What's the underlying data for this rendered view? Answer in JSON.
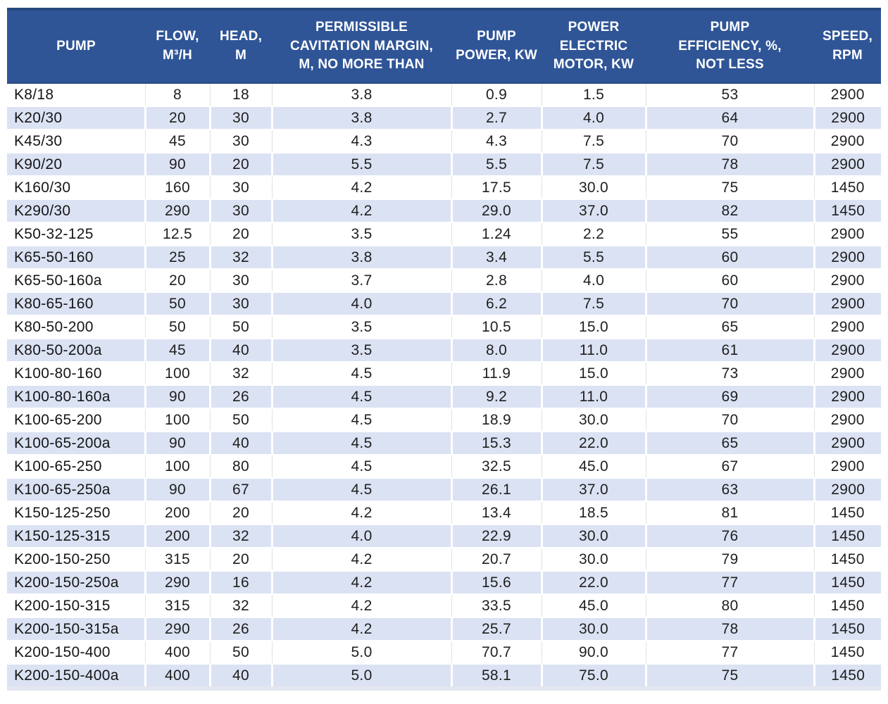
{
  "table": {
    "columns": [
      {
        "id": "pump",
        "label": "PUMP"
      },
      {
        "id": "flow",
        "label": "FLOW,\nM³/H"
      },
      {
        "id": "head",
        "label": "HEAD,\nM"
      },
      {
        "id": "cavitation",
        "label": "PERMISSIBLE\nCAVITATION MARGIN,\nM, NO MORE THAN"
      },
      {
        "id": "pump-power",
        "label": "PUMP\nPOWER, KW"
      },
      {
        "id": "motor-power",
        "label": "POWER\nELECTRIC\nMOTOR, KW"
      },
      {
        "id": "efficiency",
        "label": "PUMP\nEFFICIENCY, %,\nNOT LESS"
      },
      {
        "id": "speed",
        "label": "SPEED,\nRPM"
      }
    ],
    "rows": [
      [
        "K8/18",
        "8",
        "18",
        "3.8",
        "0.9",
        "1.5",
        "53",
        "2900"
      ],
      [
        "K20/30",
        "20",
        "30",
        "3.8",
        "2.7",
        "4.0",
        "64",
        "2900"
      ],
      [
        "K45/30",
        "45",
        "30",
        "4.3",
        "4.3",
        "7.5",
        "70",
        "2900"
      ],
      [
        "K90/20",
        "90",
        "20",
        "5.5",
        "5.5",
        "7.5",
        "78",
        "2900"
      ],
      [
        "K160/30",
        "160",
        "30",
        "4.2",
        "17.5",
        "30.0",
        "75",
        "1450"
      ],
      [
        "K290/30",
        "290",
        "30",
        "4.2",
        "29.0",
        "37.0",
        "82",
        "1450"
      ],
      [
        "K50-32-125",
        "12.5",
        "20",
        "3.5",
        "1.24",
        "2.2",
        "55",
        "2900"
      ],
      [
        "K65-50-160",
        "25",
        "32",
        "3.8",
        "3.4",
        "5.5",
        "60",
        "2900"
      ],
      [
        "K65-50-160a",
        "20",
        "30",
        "3.7",
        "2.8",
        "4.0",
        "60",
        "2900"
      ],
      [
        "K80-65-160",
        "50",
        "30",
        "4.0",
        "6.2",
        "7.5",
        "70",
        "2900"
      ],
      [
        "K80-50-200",
        "50",
        "50",
        "3.5",
        "10.5",
        "15.0",
        "65",
        "2900"
      ],
      [
        "K80-50-200a",
        "45",
        "40",
        "3.5",
        "8.0",
        "11.0",
        "61",
        "2900"
      ],
      [
        "K100-80-160",
        "100",
        "32",
        "4.5",
        "11.9",
        "15.0",
        "73",
        "2900"
      ],
      [
        "K100-80-160a",
        "90",
        "26",
        "4.5",
        "9.2",
        "11.0",
        "69",
        "2900"
      ],
      [
        "K100-65-200",
        "100",
        "50",
        "4.5",
        "18.9",
        "30.0",
        "70",
        "2900"
      ],
      [
        "K100-65-200a",
        "90",
        "40",
        "4.5",
        "15.3",
        "22.0",
        "65",
        "2900"
      ],
      [
        "K100-65-250",
        "100",
        "80",
        "4.5",
        "32.5",
        "45.0",
        "67",
        "2900"
      ],
      [
        "K100-65-250a",
        "90",
        "67",
        "4.5",
        "26.1",
        "37.0",
        "63",
        "2900"
      ],
      [
        "K150-125-250",
        "200",
        "20",
        "4.2",
        "13.4",
        "18.5",
        "81",
        "1450"
      ],
      [
        "K150-125-315",
        "200",
        "32",
        "4.0",
        "22.9",
        "30.0",
        "76",
        "1450"
      ],
      [
        "K200-150-250",
        "315",
        "20",
        "4.2",
        "20.7",
        "30.0",
        "79",
        "1450"
      ],
      [
        "K200-150-250a",
        "290",
        "16",
        "4.2",
        "15.6",
        "22.0",
        "77",
        "1450"
      ],
      [
        "K200-150-315",
        "315",
        "32",
        "4.2",
        "33.5",
        "45.0",
        "80",
        "1450"
      ],
      [
        "K200-150-315a",
        "290",
        "26",
        "4.2",
        "25.7",
        "30.0",
        "78",
        "1450"
      ],
      [
        "K200-150-400",
        "400",
        "50",
        "5.0",
        "70.7",
        "90.0",
        "77",
        "1450"
      ],
      [
        "K200-150-400a",
        "400",
        "40",
        "5.0",
        "58.1",
        "75.0",
        "75",
        "1450"
      ]
    ]
  },
  "colors": {
    "header_bg": "#2F5597",
    "header_border": "#26497F",
    "header_text": "#FFFFFF",
    "band_bg": "#DBE2F3",
    "row_bg": "#FFFFFF",
    "body_text": "#1F1F1F",
    "bottom_edge": "#E4E7EF"
  }
}
